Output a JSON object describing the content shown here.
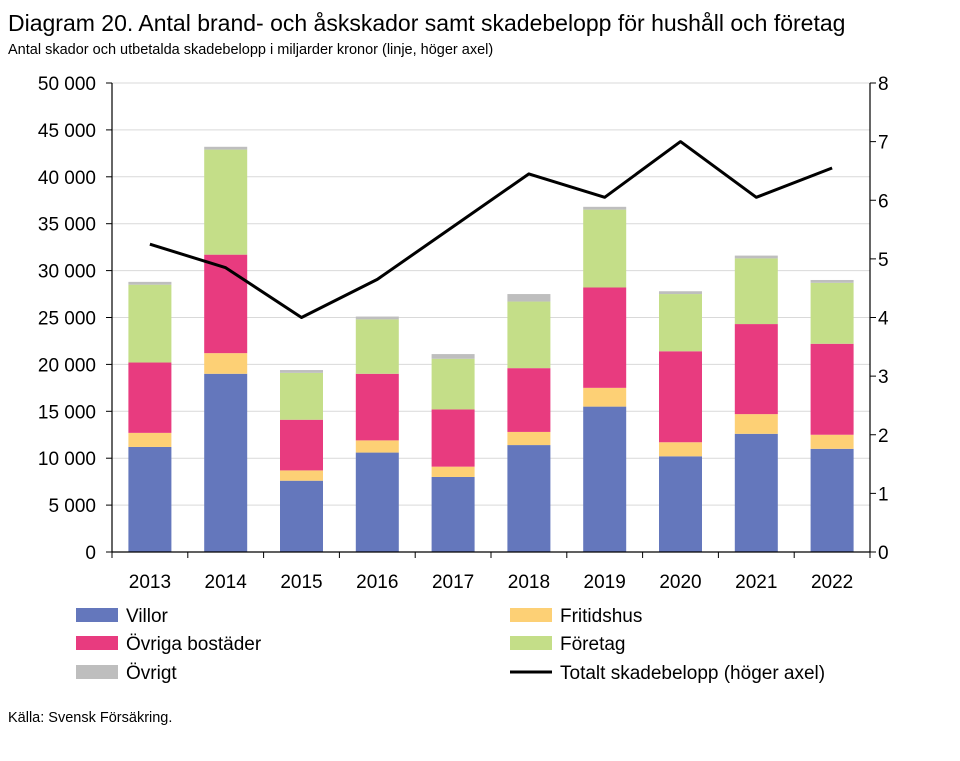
{
  "title": "Diagram 20. Antal brand- och åskskador samt skadebelopp för hushåll och företag",
  "subtitle": "Antal skador och utbetalda skadebelopp i miljarder kronor (linje, höger axel)",
  "source": "Källa: Svensk Försäkring.",
  "chart_data": {
    "type": "bar",
    "stacked": true,
    "categories": [
      "2013",
      "2014",
      "2015",
      "2016",
      "2017",
      "2018",
      "2019",
      "2020",
      "2021",
      "2022"
    ],
    "ylim": [
      0,
      50000
    ],
    "y_ticks": [
      0,
      5000,
      10000,
      15000,
      20000,
      25000,
      30000,
      35000,
      40000,
      45000,
      50000
    ],
    "y_tick_labels": [
      "0",
      "5 000",
      "10 000",
      "15 000",
      "20 000",
      "25 000",
      "30 000",
      "35 000",
      "40 000",
      "45 000",
      "50 000"
    ],
    "y2lim": [
      0,
      8
    ],
    "y2_ticks": [
      0,
      1,
      2,
      3,
      4,
      5,
      6,
      7,
      8
    ],
    "y2_tick_labels": [
      "0",
      "1",
      "2",
      "3",
      "4",
      "5",
      "6",
      "7",
      "8"
    ],
    "grid": true,
    "legend_position": "bottom",
    "series": [
      {
        "name": "Villor",
        "color": "#6477BC",
        "values": [
          11200,
          19000,
          7600,
          10600,
          8000,
          11400,
          15500,
          10200,
          12600,
          11000
        ]
      },
      {
        "name": "Fritidshus",
        "color": "#FDD075",
        "values": [
          1500,
          2200,
          1100,
          1300,
          1100,
          1400,
          2000,
          1500,
          2100,
          1500
        ]
      },
      {
        "name": "Övriga bostäder",
        "color": "#E83B7F",
        "values": [
          7500,
          10500,
          5400,
          7100,
          6100,
          6800,
          10700,
          9700,
          9600,
          9700
        ]
      },
      {
        "name": "Företag",
        "color": "#C4DE88",
        "values": [
          8300,
          11200,
          5000,
          5800,
          5400,
          7100,
          8300,
          6100,
          7000,
          6500
        ]
      },
      {
        "name": "Övrigt",
        "color": "#BEBEBE",
        "values": [
          300,
          300,
          300,
          300,
          500,
          800,
          300,
          300,
          300,
          300
        ]
      }
    ],
    "line_series": {
      "name": "Totalt skadebelopp (höger axel)",
      "color": "#000000",
      "axis": "right",
      "values": [
        5.25,
        4.85,
        4.0,
        4.65,
        5.55,
        6.45,
        6.05,
        7.0,
        6.05,
        6.55
      ]
    },
    "legend": {
      "left": [
        "Villor",
        "Övriga bostäder",
        "Övrigt"
      ],
      "right": [
        "Fritidshus",
        "Företag",
        "Totalt skadebelopp (höger axel)"
      ]
    }
  }
}
